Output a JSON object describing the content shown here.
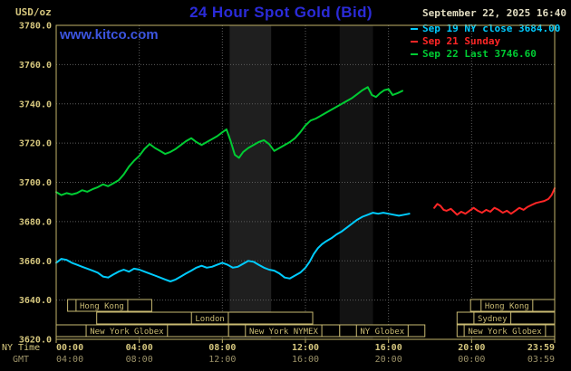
{
  "header": {
    "units_label": "USD/oz",
    "title": "24 Hour Spot Gold (Bid)",
    "datetime": "September 22, 2025 16:40",
    "watermark": "www.kitco.com"
  },
  "legend": {
    "items": [
      {
        "label": "Sep 19 NY close 3684.00",
        "color": "#00ccff"
      },
      {
        "label": "Sep 21 Sunday",
        "color": "#ff2626"
      },
      {
        "label": "Sep 22 Last 3746.60",
        "color": "#00cc33"
      }
    ]
  },
  "chart_data": {
    "type": "line",
    "title": "24 Hour Spot Gold (Bid)",
    "units": "USD/oz",
    "xlim": [
      0,
      24
    ],
    "ylim": [
      3620,
      3780
    ],
    "y_ticks": [
      3620,
      3640,
      3660,
      3680,
      3700,
      3720,
      3740,
      3760,
      3780
    ],
    "x_ticks": {
      "hours": [
        0,
        4,
        8,
        12,
        16,
        20,
        24
      ],
      "ny": [
        "00:00",
        "04:00",
        "08:00",
        "12:00",
        "16:00",
        "20:00",
        "23:59"
      ],
      "gmt": [
        "04:00",
        "08:00",
        "12:00",
        "16:00",
        "20:00",
        "00:00",
        "03:59"
      ]
    },
    "x_axis_row_labels": {
      "ny": "NY Time",
      "gmt": "GMT"
    },
    "colors": {
      "background": "#000000",
      "frame": "#c2b36a",
      "grid": "#5c5c5c",
      "grid_dash": "1,2",
      "tick_text": "#d6c77e",
      "gmt_text": "#9c9268",
      "session_box": "#c9ba72"
    },
    "bands": [
      {
        "start": 8.35,
        "end": 10.35,
        "color": "#1f1f1f"
      },
      {
        "start": 13.65,
        "end": 15.25,
        "color": "#131313"
      }
    ],
    "series": [
      {
        "name": "Sep 19 NY close",
        "color": "#00ccff",
        "close": 3684.0,
        "points": [
          [
            0,
            3659
          ],
          [
            0.25,
            3661
          ],
          [
            0.5,
            3660.5
          ],
          [
            0.75,
            3659
          ],
          [
            1,
            3658
          ],
          [
            1.25,
            3657
          ],
          [
            1.5,
            3656
          ],
          [
            1.75,
            3655
          ],
          [
            2,
            3654
          ],
          [
            2.25,
            3652
          ],
          [
            2.5,
            3651.5
          ],
          [
            2.75,
            3653
          ],
          [
            3,
            3654.5
          ],
          [
            3.25,
            3655.5
          ],
          [
            3.5,
            3654.5
          ],
          [
            3.75,
            3656
          ],
          [
            4,
            3655.5
          ],
          [
            4.25,
            3654.5
          ],
          [
            4.5,
            3653.5
          ],
          [
            4.75,
            3652.5
          ],
          [
            5,
            3651.5
          ],
          [
            5.25,
            3650.5
          ],
          [
            5.5,
            3649.5
          ],
          [
            5.75,
            3650.5
          ],
          [
            6,
            3652
          ],
          [
            6.25,
            3653.5
          ],
          [
            6.5,
            3655
          ],
          [
            6.75,
            3656.5
          ],
          [
            7,
            3657.5
          ],
          [
            7.25,
            3656.5
          ],
          [
            7.5,
            3657
          ],
          [
            7.75,
            3658
          ],
          [
            8,
            3659
          ],
          [
            8.25,
            3658
          ],
          [
            8.5,
            3656.5
          ],
          [
            8.75,
            3657
          ],
          [
            9,
            3658.5
          ],
          [
            9.25,
            3660
          ],
          [
            9.5,
            3659.5
          ],
          [
            9.75,
            3658
          ],
          [
            10,
            3656.5
          ],
          [
            10.25,
            3655.5
          ],
          [
            10.5,
            3655
          ],
          [
            10.75,
            3653.5
          ],
          [
            11,
            3651.5
          ],
          [
            11.25,
            3651
          ],
          [
            11.5,
            3652.5
          ],
          [
            11.75,
            3654
          ],
          [
            12,
            3656.5
          ],
          [
            12.2,
            3659.5
          ],
          [
            12.4,
            3663.5
          ],
          [
            12.6,
            3666.5
          ],
          [
            12.8,
            3668.5
          ],
          [
            13,
            3670
          ],
          [
            13.25,
            3671.5
          ],
          [
            13.5,
            3673.5
          ],
          [
            13.75,
            3675
          ],
          [
            14,
            3677
          ],
          [
            14.25,
            3679
          ],
          [
            14.5,
            3681
          ],
          [
            14.75,
            3682.5
          ],
          [
            15,
            3683.5
          ],
          [
            15.25,
            3684.5
          ],
          [
            15.5,
            3684
          ],
          [
            15.75,
            3684.5
          ],
          [
            16,
            3684
          ],
          [
            16.25,
            3683.5
          ],
          [
            16.5,
            3683
          ],
          [
            16.75,
            3683.5
          ],
          [
            17,
            3684
          ]
        ]
      },
      {
        "name": "Sep 21 Sunday",
        "color": "#ff2626",
        "points": [
          [
            18.2,
            3687
          ],
          [
            18.35,
            3689
          ],
          [
            18.5,
            3688
          ],
          [
            18.65,
            3686
          ],
          [
            18.8,
            3685.5
          ],
          [
            19,
            3686.5
          ],
          [
            19.15,
            3685
          ],
          [
            19.3,
            3683.5
          ],
          [
            19.5,
            3685
          ],
          [
            19.7,
            3684
          ],
          [
            19.9,
            3685.5
          ],
          [
            20.1,
            3687
          ],
          [
            20.3,
            3685.5
          ],
          [
            20.5,
            3684.5
          ],
          [
            20.7,
            3686
          ],
          [
            20.9,
            3685
          ],
          [
            21.1,
            3687
          ],
          [
            21.3,
            3686
          ],
          [
            21.5,
            3684.5
          ],
          [
            21.7,
            3685.5
          ],
          [
            21.9,
            3684
          ],
          [
            22.1,
            3685.5
          ],
          [
            22.3,
            3687
          ],
          [
            22.5,
            3686
          ],
          [
            22.7,
            3687.5
          ],
          [
            22.9,
            3688.5
          ],
          [
            23.1,
            3689.5
          ],
          [
            23.3,
            3690
          ],
          [
            23.5,
            3690.5
          ],
          [
            23.7,
            3691.5
          ],
          [
            23.85,
            3693.5
          ],
          [
            24,
            3697
          ]
        ]
      },
      {
        "name": "Sep 22 Last",
        "color": "#00cc33",
        "last": 3746.6,
        "points": [
          [
            0,
            3695
          ],
          [
            0.25,
            3693.5
          ],
          [
            0.5,
            3694.5
          ],
          [
            0.75,
            3693.8
          ],
          [
            1,
            3694.5
          ],
          [
            1.25,
            3696
          ],
          [
            1.5,
            3695.2
          ],
          [
            1.75,
            3696.5
          ],
          [
            2,
            3697.5
          ],
          [
            2.25,
            3699
          ],
          [
            2.5,
            3698
          ],
          [
            2.75,
            3699.5
          ],
          [
            3,
            3701
          ],
          [
            3.25,
            3704
          ],
          [
            3.5,
            3708
          ],
          [
            3.75,
            3711
          ],
          [
            4,
            3713.5
          ],
          [
            4.25,
            3717
          ],
          [
            4.5,
            3719.5
          ],
          [
            4.75,
            3717.5
          ],
          [
            5,
            3716
          ],
          [
            5.25,
            3714.5
          ],
          [
            5.5,
            3715.5
          ],
          [
            5.75,
            3717
          ],
          [
            6,
            3719
          ],
          [
            6.25,
            3721
          ],
          [
            6.5,
            3722.5
          ],
          [
            6.75,
            3720.5
          ],
          [
            7,
            3719
          ],
          [
            7.25,
            3720.5
          ],
          [
            7.5,
            3722
          ],
          [
            7.75,
            3723.5
          ],
          [
            8,
            3725.5
          ],
          [
            8.2,
            3727
          ],
          [
            8.4,
            3721
          ],
          [
            8.6,
            3714
          ],
          [
            8.8,
            3712.5
          ],
          [
            9,
            3715.5
          ],
          [
            9.25,
            3717.5
          ],
          [
            9.5,
            3719
          ],
          [
            9.75,
            3720.5
          ],
          [
            10,
            3721.5
          ],
          [
            10.25,
            3719.5
          ],
          [
            10.5,
            3716
          ],
          [
            10.75,
            3717.5
          ],
          [
            11,
            3719
          ],
          [
            11.25,
            3720.5
          ],
          [
            11.5,
            3722.5
          ],
          [
            11.75,
            3725.5
          ],
          [
            12,
            3729
          ],
          [
            12.25,
            3731.5
          ],
          [
            12.5,
            3732.5
          ],
          [
            12.75,
            3734
          ],
          [
            13,
            3735.5
          ],
          [
            13.25,
            3737
          ],
          [
            13.5,
            3738.5
          ],
          [
            13.75,
            3740
          ],
          [
            14,
            3741.5
          ],
          [
            14.25,
            3743
          ],
          [
            14.5,
            3745
          ],
          [
            14.75,
            3747
          ],
          [
            15,
            3748.5
          ],
          [
            15.2,
            3744.5
          ],
          [
            15.4,
            3743.5
          ],
          [
            15.6,
            3745.5
          ],
          [
            15.8,
            3747
          ],
          [
            16,
            3747.5
          ],
          [
            16.2,
            3744.5
          ],
          [
            16.45,
            3745.5
          ],
          [
            16.67,
            3746.6
          ]
        ]
      }
    ],
    "sessions": {
      "rows": [
        [
          {
            "label": "Hong Kong",
            "start": 0.55,
            "end": 4.6,
            "label_x": 2.2
          },
          {
            "label": "Hong Kong",
            "start": 19.95,
            "end": 24,
            "label_x": 21.7
          }
        ],
        [
          {
            "label": "London",
            "start": 1.95,
            "end": 12.35,
            "label_x": 7.4
          },
          {
            "label": "Sydney",
            "start": 19.3,
            "end": 24,
            "label_x": 21.0
          }
        ],
        [
          {
            "label": "New York Globex",
            "start": 0,
            "end": 8.3,
            "label_x": 3.4
          },
          {
            "label": "New York NYMEX",
            "start": 8.3,
            "end": 13.65,
            "label_x": 10.95
          },
          {
            "label": "NY Globex",
            "start": 13.65,
            "end": 17.75,
            "label_x": 15.7
          },
          {
            "label": "New York Globex",
            "start": 19.3,
            "end": 24,
            "label_x": 21.6
          }
        ]
      ]
    }
  }
}
